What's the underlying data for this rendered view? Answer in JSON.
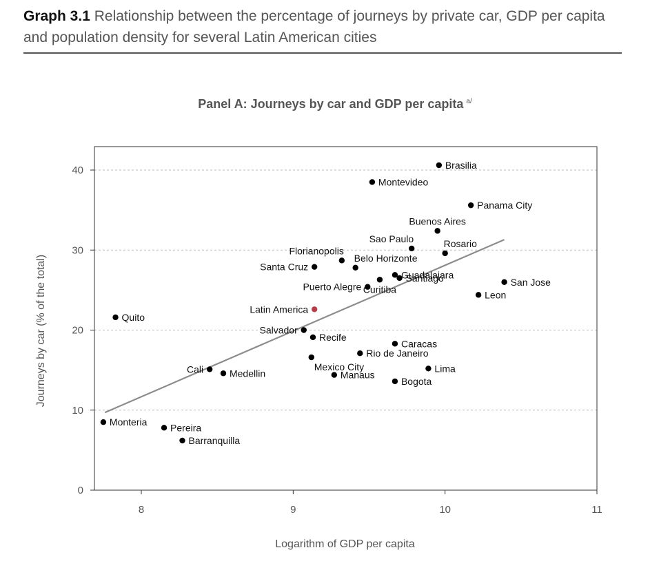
{
  "header": {
    "label": "Graph 3.1",
    "title": "Relationship between the percentage of journeys by private car, GDP per capita and population density for several Latin American cities"
  },
  "panel": {
    "title": "Panel A: Journeys by car and GDP per capita",
    "note": "a/"
  },
  "colors": {
    "point": "#000000",
    "highlight": "#b5404b",
    "trend": "#8c8c8c",
    "grid": "#bbbbbb",
    "axis": "#555555"
  },
  "chart_data": {
    "type": "scatter",
    "xlabel": "Logarithm of GDP per capita",
    "ylabel": "Journeys by car (% of the total)",
    "xlim": [
      7.7,
      11
    ],
    "ylim": [
      0,
      43
    ],
    "xticks": [
      8,
      9,
      10,
      11
    ],
    "yticks": [
      0,
      10,
      20,
      30,
      40
    ],
    "grid": "horizontal dashed",
    "points": [
      {
        "name": "Brasilia",
        "x": 9.96,
        "y": 40.6,
        "label_side": "right"
      },
      {
        "name": "Montevideo",
        "x": 9.52,
        "y": 38.5,
        "label_side": "right"
      },
      {
        "name": "Panama City",
        "x": 10.17,
        "y": 35.6,
        "label_side": "right"
      },
      {
        "name": "Buenos Aires",
        "x": 9.95,
        "y": 32.4,
        "label_side": "above"
      },
      {
        "name": "Sao Paulo",
        "x": 9.78,
        "y": 30.2,
        "label_side": "above-left"
      },
      {
        "name": "Rosario",
        "x": 10.0,
        "y": 29.6,
        "label_side": "above-right"
      },
      {
        "name": "Florianopolis",
        "x": 9.32,
        "y": 28.7,
        "label_side": "above-left"
      },
      {
        "name": "Belo Horizonte",
        "x": 9.41,
        "y": 27.8,
        "label_side": "above-right"
      },
      {
        "name": "Santa Cruz",
        "x": 9.14,
        "y": 27.9,
        "label_side": "left"
      },
      {
        "name": "Guadalajara",
        "x": 9.67,
        "y": 26.9,
        "label_side": "right"
      },
      {
        "name": "Santiago",
        "x": 9.7,
        "y": 26.5,
        "label_side": "right"
      },
      {
        "name": "Curitiba",
        "x": 9.57,
        "y": 26.3,
        "label_side": "below"
      },
      {
        "name": "Puerto Alegre",
        "x": 9.49,
        "y": 25.4,
        "label_side": "left"
      },
      {
        "name": "San Jose",
        "x": 10.39,
        "y": 26.0,
        "label_side": "right"
      },
      {
        "name": "Leon",
        "x": 10.22,
        "y": 24.4,
        "label_side": "right"
      },
      {
        "name": "Latin America",
        "x": 9.14,
        "y": 22.6,
        "label_side": "left",
        "highlight": true
      },
      {
        "name": "Quito",
        "x": 7.83,
        "y": 21.6,
        "label_side": "right"
      },
      {
        "name": "Salvador",
        "x": 9.07,
        "y": 20.0,
        "label_side": "left"
      },
      {
        "name": "Recife",
        "x": 9.13,
        "y": 19.1,
        "label_side": "right"
      },
      {
        "name": "Caracas",
        "x": 9.67,
        "y": 18.3,
        "label_side": "right"
      },
      {
        "name": "Rio de Janeiro",
        "x": 9.44,
        "y": 17.1,
        "label_side": "right"
      },
      {
        "name": "Mexico City",
        "x": 9.12,
        "y": 16.6,
        "label_side": "below-right"
      },
      {
        "name": "Lima",
        "x": 9.89,
        "y": 15.2,
        "label_side": "right"
      },
      {
        "name": "Cali",
        "x": 8.45,
        "y": 15.1,
        "label_side": "left"
      },
      {
        "name": "Medellin",
        "x": 8.54,
        "y": 14.6,
        "label_side": "right"
      },
      {
        "name": "Manaus",
        "x": 9.27,
        "y": 14.4,
        "label_side": "right"
      },
      {
        "name": "Bogota",
        "x": 9.67,
        "y": 13.6,
        "label_side": "right"
      },
      {
        "name": "Monteria",
        "x": 7.75,
        "y": 8.5,
        "label_side": "right"
      },
      {
        "name": "Pereira",
        "x": 8.15,
        "y": 7.8,
        "label_side": "right"
      },
      {
        "name": "Barranquilla",
        "x": 8.27,
        "y": 6.2,
        "label_side": "right"
      }
    ],
    "trendline": {
      "x": [
        7.76,
        10.39
      ],
      "y": [
        9.7,
        31.3
      ]
    }
  }
}
